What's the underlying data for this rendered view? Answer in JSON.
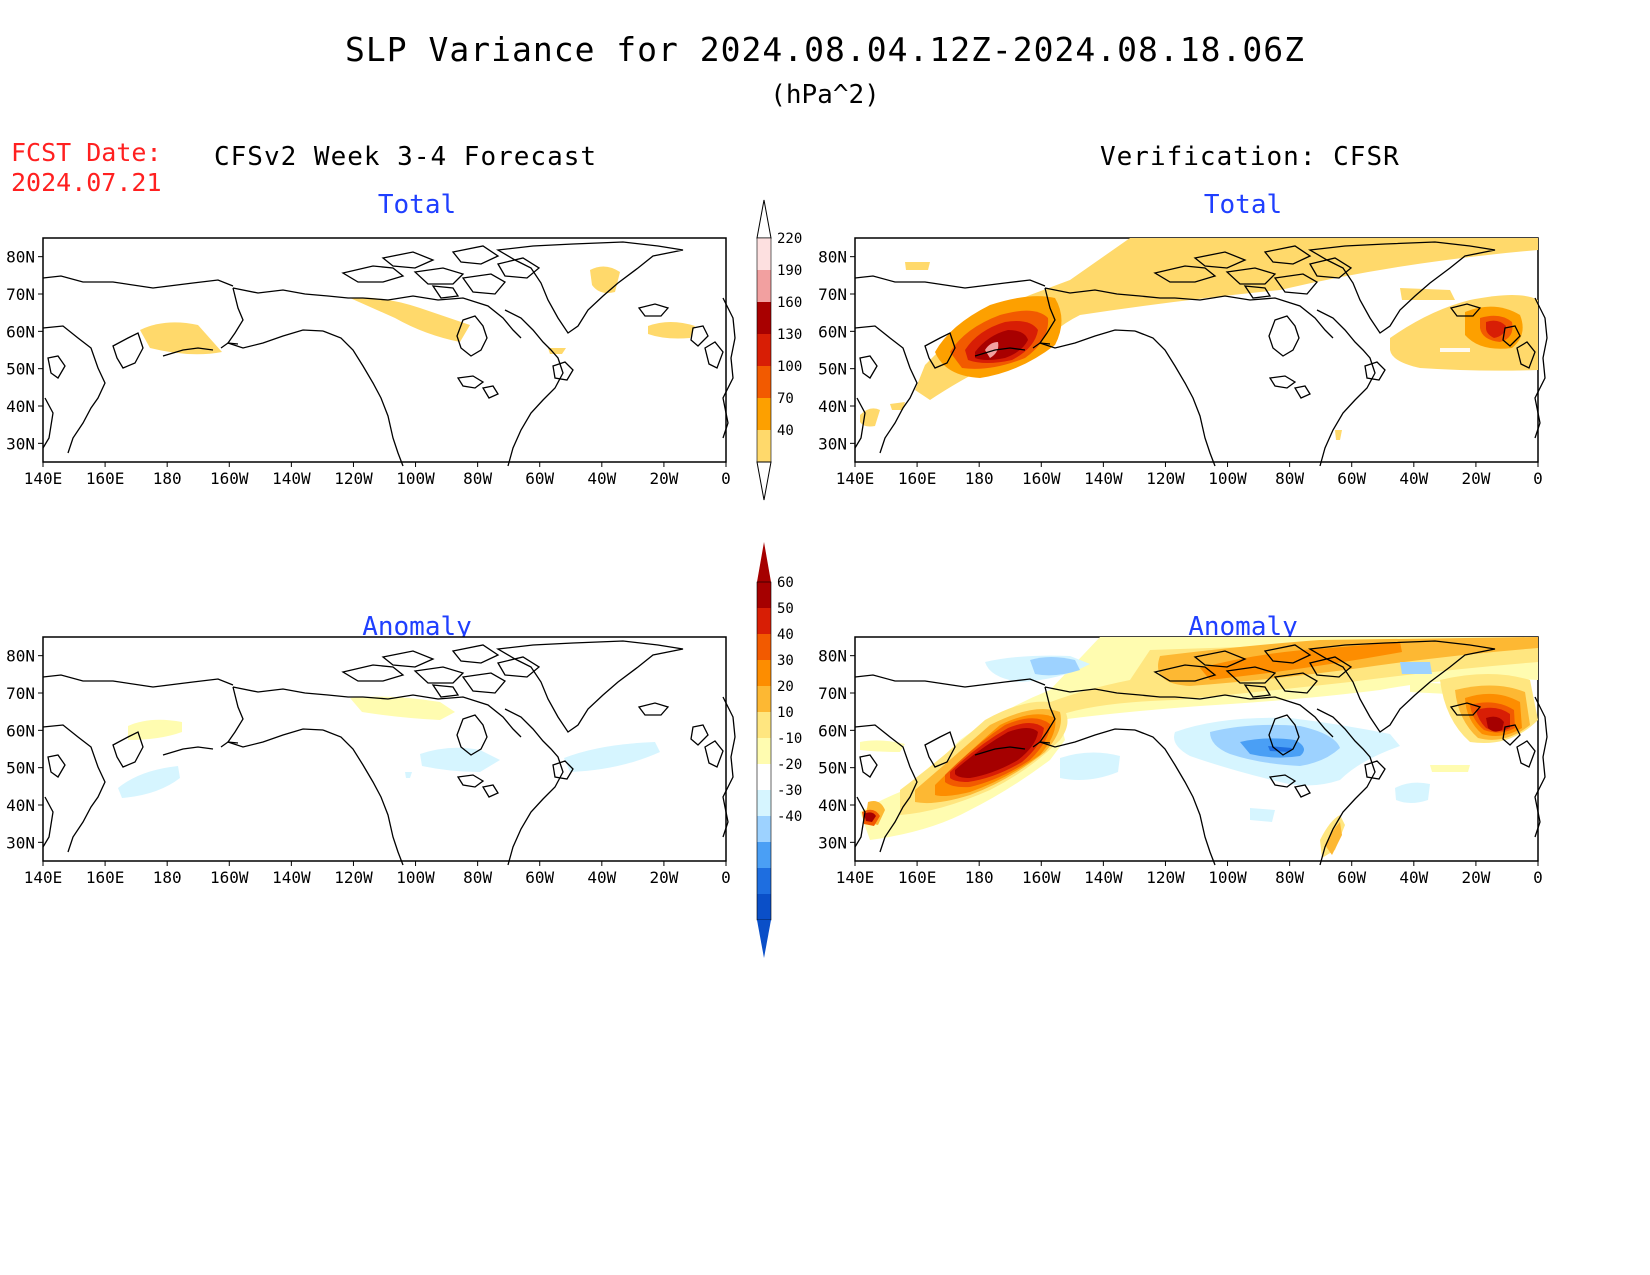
{
  "header": {
    "title": "SLP Variance for 2024.08.04.12Z-2024.08.18.06Z",
    "units": "(hPa^2)",
    "fcst_label": "FCST Date:",
    "fcst_date": "2024.07.21",
    "forecast_header": "CFSv2 Week 3-4 Forecast",
    "verification_header": "Verification: CFSR"
  },
  "panels": [
    {
      "id": "forecast-total",
      "title": "Total"
    },
    {
      "id": "verification-total",
      "title": "Total"
    },
    {
      "id": "forecast-anomaly",
      "title": "Anomaly"
    },
    {
      "id": "verification-anomaly",
      "title": "Anomaly"
    }
  ],
  "axes": {
    "lon_labels": [
      "140E",
      "160E",
      "180",
      "160W",
      "140W",
      "120W",
      "100W",
      "80W",
      "60W",
      "40W",
      "20W",
      "0"
    ],
    "lat_labels": [
      "80N",
      "70N",
      "60N",
      "50N",
      "40N",
      "30N"
    ],
    "lon_range_deg_east": [
      140,
      360
    ],
    "lat_range": [
      25,
      85
    ]
  },
  "colorbars": {
    "total": {
      "labels": [
        "220",
        "190",
        "160",
        "130",
        "100",
        "70",
        "40"
      ],
      "colors": [
        "#fde0e0",
        "#f2a0a0",
        "#a80000",
        "#d81e05",
        "#f25a00",
        "#fda000",
        "#ffd96b"
      ]
    },
    "anomaly": {
      "labels": [
        "60",
        "50",
        "40",
        "30",
        "20",
        "10",
        "-10",
        "-20",
        "-30",
        "-40"
      ],
      "colors": [
        "#a50000",
        "#d81e05",
        "#f25a00",
        "#fd8d00",
        "#fdb833",
        "#ffe680",
        "#fffcb0",
        "#ffffff",
        "#d6f5ff",
        "#9dd2ff",
        "#4a9ff5",
        "#1e6ee0",
        "#0a4fc8"
      ]
    }
  }
}
